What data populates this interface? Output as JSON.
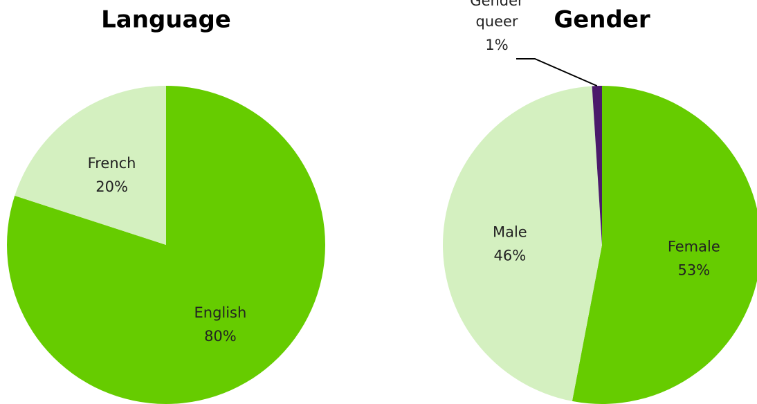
{
  "chart_data": [
    {
      "type": "pie",
      "title": "Language",
      "categories": [
        "English",
        "French"
      ],
      "values": [
        80,
        20
      ],
      "value_labels": [
        "80%",
        "20%"
      ],
      "colors": [
        "#66cc00",
        "#d4f0c0"
      ]
    },
    {
      "type": "pie",
      "title": "Gender",
      "categories": [
        "Female",
        "Male",
        "Gender queer"
      ],
      "values": [
        53,
        46,
        1
      ],
      "value_labels": [
        "53%",
        "46%",
        "1%"
      ],
      "colors": [
        "#66cc00",
        "#d4f0c0",
        "#4b1a6b"
      ]
    }
  ]
}
